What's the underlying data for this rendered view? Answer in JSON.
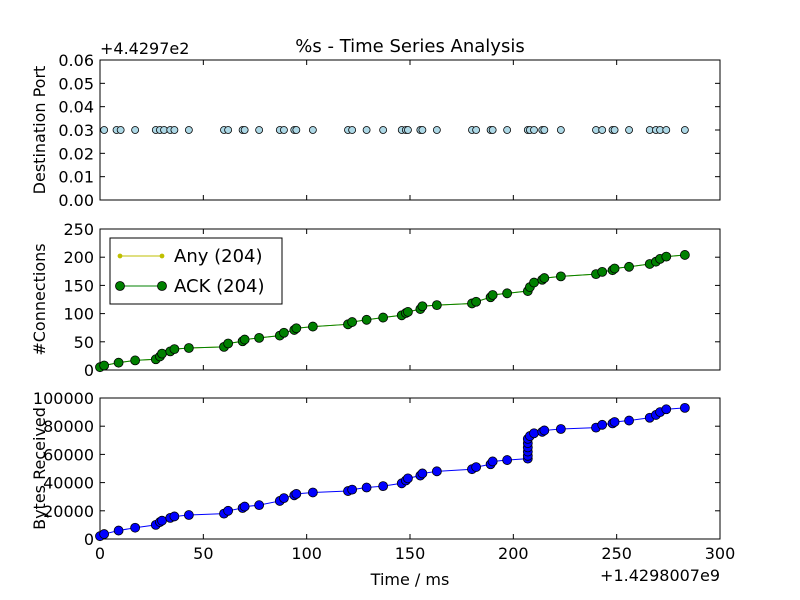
{
  "figure": {
    "title": "%s - Time Series Analysis",
    "xlabel": "Time / ms",
    "x_offset_label": "+1.4298007e9"
  },
  "chart_data": [
    {
      "type": "scatter",
      "ylabel": "Destination Port",
      "offset_label": "+4.4297e2",
      "xlim": [
        0,
        300
      ],
      "ylim": [
        0.0,
        0.06
      ],
      "yticks": [
        0.0,
        0.01,
        0.02,
        0.03,
        0.04,
        0.05,
        0.06
      ],
      "ytick_labels": [
        "0.00",
        "0.01",
        "0.02",
        "0.03",
        "0.04",
        "0.05",
        "0.06"
      ],
      "marker_color": "#add8e6",
      "series": [
        {
          "x": [
            2,
            8,
            10,
            17,
            27,
            29,
            31,
            34,
            36,
            43,
            60,
            62,
            69,
            70,
            77,
            87,
            89,
            94,
            95,
            103,
            120,
            122,
            129,
            137,
            146,
            148,
            149,
            155,
            156,
            163,
            180,
            182,
            189,
            190,
            197,
            207,
            208,
            210,
            214,
            215,
            223,
            240,
            243,
            248,
            249,
            256,
            266,
            269,
            271,
            274,
            283
          ],
          "y": [
            0.03,
            0.03,
            0.03,
            0.03,
            0.03,
            0.03,
            0.03,
            0.03,
            0.03,
            0.03,
            0.03,
            0.03,
            0.03,
            0.03,
            0.03,
            0.03,
            0.03,
            0.03,
            0.03,
            0.03,
            0.03,
            0.03,
            0.03,
            0.03,
            0.03,
            0.03,
            0.03,
            0.03,
            0.03,
            0.03,
            0.03,
            0.03,
            0.03,
            0.03,
            0.03,
            0.03,
            0.03,
            0.03,
            0.03,
            0.03,
            0.03,
            0.03,
            0.03,
            0.03,
            0.03,
            0.03,
            0.03,
            0.03,
            0.03,
            0.03,
            0.03
          ]
        }
      ]
    },
    {
      "type": "line",
      "ylabel": "#Connections",
      "xlim": [
        0,
        300
      ],
      "ylim": [
        0,
        250
      ],
      "yticks": [
        0,
        50,
        100,
        150,
        200,
        250
      ],
      "ytick_labels": [
        "0",
        "50",
        "100",
        "150",
        "200",
        "250"
      ],
      "legend_position": "top-left",
      "series": [
        {
          "name": "Any (204)",
          "color": "#bfbf00",
          "marker": "small-dot",
          "x": [
            0,
            2,
            9,
            17,
            27,
            29,
            30,
            34,
            36,
            43,
            60,
            62,
            69,
            70,
            77,
            87,
            89,
            94,
            95,
            103,
            120,
            122,
            129,
            137,
            146,
            148,
            149,
            155,
            156,
            163,
            180,
            182,
            189,
            190,
            197,
            207,
            208,
            210,
            214,
            215,
            223,
            240,
            243,
            248,
            249,
            256,
            266,
            269,
            271,
            274,
            283
          ],
          "y": [
            5,
            8,
            13,
            17,
            19,
            24,
            29,
            33,
            37,
            39,
            41,
            47,
            51,
            54,
            57,
            61,
            66,
            71,
            74,
            77,
            81,
            85,
            89,
            93,
            97,
            101,
            103,
            108,
            113,
            115,
            118,
            121,
            129,
            133,
            136,
            140,
            147,
            155,
            160,
            163,
            166,
            170,
            174,
            177,
            180,
            183,
            188,
            192,
            197,
            201,
            204
          ]
        },
        {
          "name": "ACK (204)",
          "color": "#008000",
          "marker": "large-dot",
          "x": [
            0,
            2,
            9,
            17,
            27,
            29,
            30,
            34,
            36,
            43,
            60,
            62,
            69,
            70,
            77,
            87,
            89,
            94,
            95,
            103,
            120,
            122,
            129,
            137,
            146,
            148,
            149,
            155,
            156,
            163,
            180,
            182,
            189,
            190,
            197,
            207,
            208,
            210,
            214,
            215,
            223,
            240,
            243,
            248,
            249,
            256,
            266,
            269,
            271,
            274,
            283
          ],
          "y": [
            5,
            8,
            13,
            17,
            19,
            24,
            29,
            33,
            37,
            39,
            41,
            47,
            51,
            54,
            57,
            61,
            66,
            71,
            74,
            77,
            81,
            85,
            89,
            93,
            97,
            101,
            103,
            108,
            113,
            115,
            118,
            121,
            129,
            133,
            136,
            140,
            147,
            155,
            160,
            163,
            166,
            170,
            174,
            177,
            180,
            183,
            188,
            192,
            197,
            201,
            204
          ]
        }
      ]
    },
    {
      "type": "line",
      "ylabel": "Bytes Received",
      "xlim": [
        0,
        300
      ],
      "ylim": [
        0,
        100000
      ],
      "yticks": [
        0,
        20000,
        40000,
        60000,
        80000,
        100000
      ],
      "ytick_labels": [
        "0",
        "20000",
        "40000",
        "60000",
        "80000",
        "100000"
      ],
      "xticks": [
        0,
        50,
        100,
        150,
        200,
        250,
        300
      ],
      "xtick_labels": [
        "0",
        "50",
        "100",
        "150",
        "200",
        "250",
        "300"
      ],
      "series": [
        {
          "color": "#0000ff",
          "x": [
            0,
            2,
            9,
            17,
            27,
            29,
            30,
            34,
            36,
            43,
            60,
            62,
            69,
            70,
            77,
            87,
            89,
            94,
            95,
            103,
            120,
            122,
            129,
            137,
            146,
            148,
            149,
            155,
            156,
            163,
            180,
            182,
            189,
            190,
            197,
            207,
            207,
            207,
            207,
            207,
            207,
            208,
            210,
            214,
            215,
            223,
            240,
            243,
            248,
            249,
            256,
            266,
            269,
            271,
            274,
            283
          ],
          "y": [
            2000,
            3500,
            6000,
            8000,
            10000,
            12000,
            13000,
            15000,
            16000,
            17000,
            18000,
            20000,
            22000,
            23000,
            24000,
            27000,
            29000,
            31000,
            32000,
            33000,
            34000,
            35000,
            36500,
            37500,
            39500,
            41500,
            43000,
            45000,
            46500,
            48000,
            49500,
            51000,
            53000,
            55000,
            56000,
            57000,
            59000,
            62000,
            65000,
            68000,
            71000,
            73000,
            75000,
            76000,
            77000,
            78000,
            79000,
            81000,
            82000,
            83000,
            84000,
            86000,
            88000,
            90000,
            92000,
            93000
          ]
        }
      ]
    }
  ]
}
